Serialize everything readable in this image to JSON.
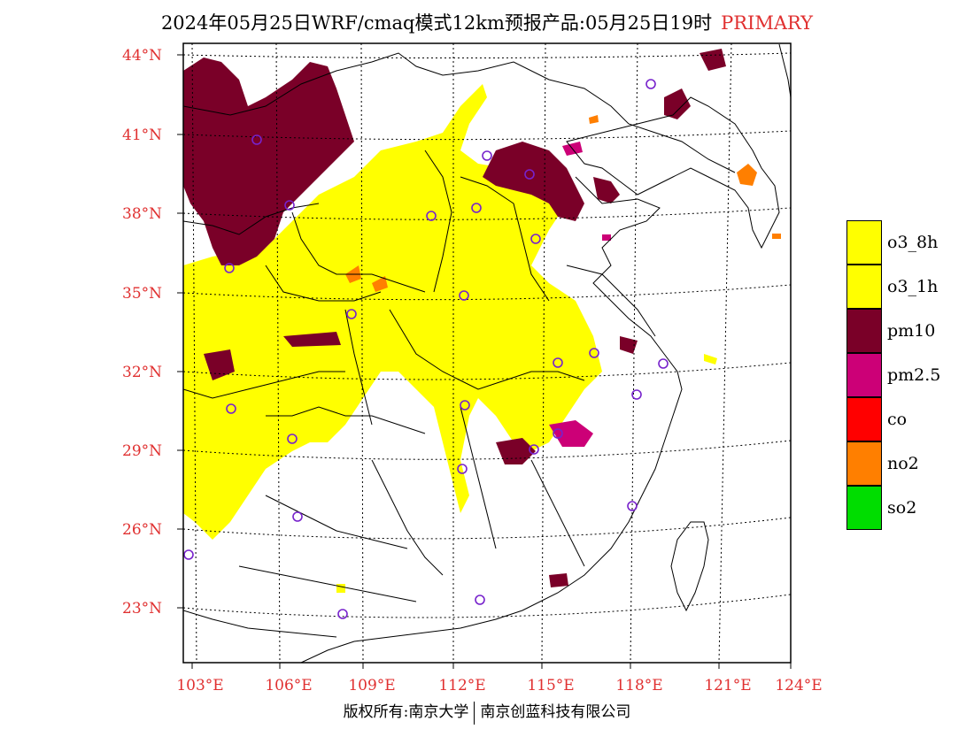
{
  "title": {
    "main": "2024年05月25日WRF/cmaq模式12km预报产品:05月25日19时",
    "tag": "PRIMARY"
  },
  "map": {
    "lon_range": [
      102.5,
      124
    ],
    "lat_range": [
      21,
      44.5
    ],
    "lat_labels": [
      "44°N",
      "41°N",
      "38°N",
      "35°N",
      "32°N",
      "29°N",
      "26°N",
      "23°N"
    ],
    "lon_labels": [
      "103°E",
      "106°E",
      "109°E",
      "112°E",
      "115°E",
      "118°E",
      "121°E",
      "124°E"
    ],
    "colors": {
      "o3_8h": "#ffff00",
      "o3_1h": "#ffff00",
      "pm10": "#7a0028",
      "pm2_5": "#cc0077",
      "co": "#ff0000",
      "no2": "#ff7f00",
      "so2": "#00dd00",
      "station": "#7722cc"
    }
  },
  "legend": [
    {
      "label": "o3_8h",
      "color": "#ffff00"
    },
    {
      "label": "o3_1h",
      "color": "#ffff00"
    },
    {
      "label": "pm10",
      "color": "#7a0028"
    },
    {
      "label": "pm2.5",
      "color": "#cc0077"
    },
    {
      "label": "co",
      "color": "#ff0000"
    },
    {
      "label": "no2",
      "color": "#ff7f00"
    },
    {
      "label": "so2",
      "color": "#00dd00"
    }
  ],
  "footer": {
    "left": "版权所有:南京大学",
    "right": "南京创蓝科技有限公司"
  }
}
